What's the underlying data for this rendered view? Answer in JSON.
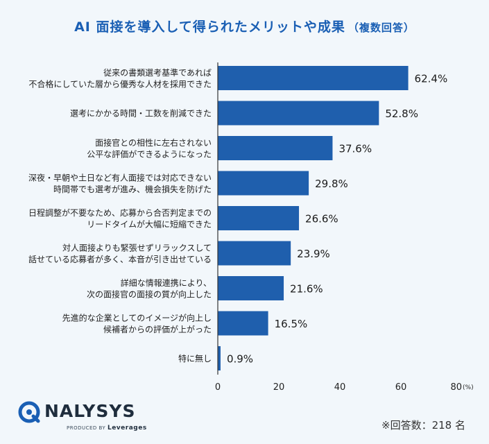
{
  "header": {
    "title": "AI 面接を導入して得られたメリットや成果",
    "subtitle": "（複数回答）"
  },
  "colors": {
    "bar": "#1f5fad",
    "title": "#1a5fb4",
    "background": "#f2f7fb"
  },
  "chart_data": {
    "type": "bar",
    "orientation": "horizontal",
    "categories": [
      [
        "従来の書類選考基準であれば",
        "不合格にしていた層から優秀な人材を採用できた"
      ],
      [
        "選考にかかる時間・工数を削減できた"
      ],
      [
        "面接官との相性に左右されない",
        "公平な評価ができるようになった"
      ],
      [
        "深夜・早朝や土日など有人面接では対応できない",
        "時間帯でも選考が進み、機会損失を防げた"
      ],
      [
        "日程調整が不要なため、応募から合否判定までの",
        "リードタイムが大幅に短縮できた"
      ],
      [
        "対人面接よりも緊張せずリラックスして",
        "話せている応募者が多く、本音が引き出せている"
      ],
      [
        "詳細な情報連携により、",
        "次の面接官の面接の質が向上した"
      ],
      [
        "先進的な企業としてのイメージが向上し",
        "候補者からの評価が上がった"
      ],
      [
        "特に無し"
      ]
    ],
    "values": [
      62.4,
      52.8,
      37.6,
      29.8,
      26.6,
      23.9,
      21.6,
      16.5,
      0.9
    ],
    "value_labels": [
      "62.4%",
      "52.8%",
      "37.6%",
      "29.8%",
      "26.6%",
      "23.9%",
      "21.6%",
      "16.5%",
      "0.9%"
    ],
    "xlim": [
      0,
      80
    ],
    "xticks": [
      "0",
      "20",
      "40",
      "60",
      "80"
    ],
    "x_unit": "(%)",
    "grid": false
  },
  "footer": {
    "logo_name": "NALYSYS",
    "logo_tag_prefix": "PRODUCED BY",
    "logo_tag_brand": "Leverages",
    "respondents": "※回答数：218 名"
  }
}
